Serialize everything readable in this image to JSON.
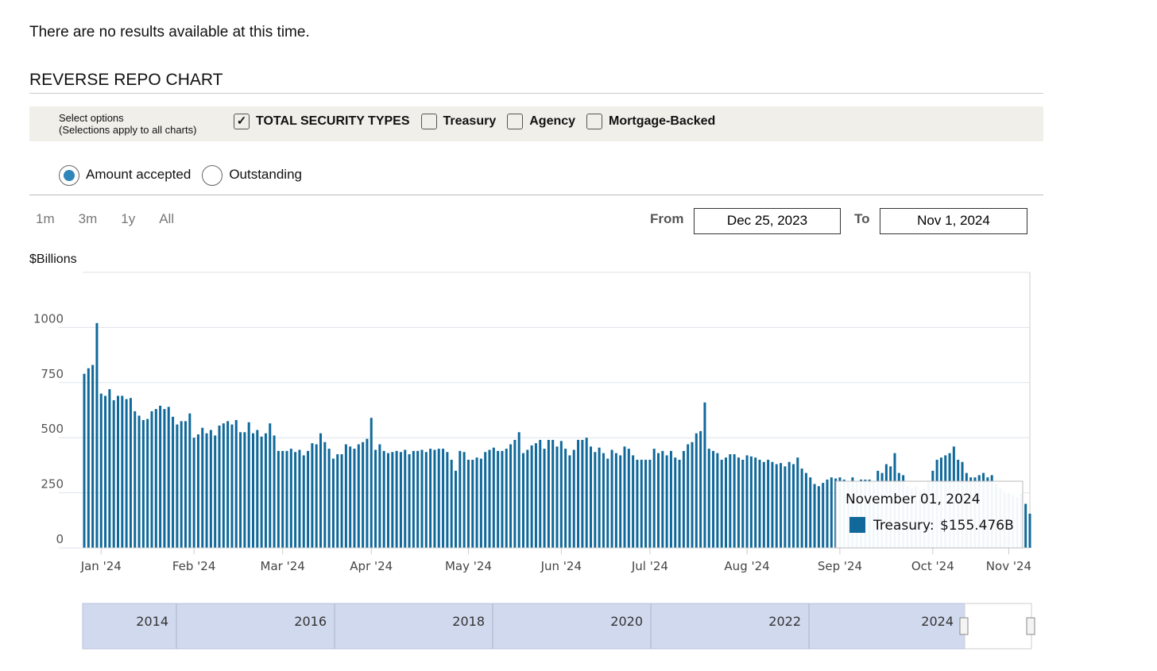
{
  "message": "There are no results available at this time.",
  "section_title": "REVERSE REPO CHART",
  "options": {
    "label_line1": "Select options",
    "label_line2": "(Selections apply to all charts)",
    "checkboxes": [
      {
        "label": "TOTAL SECURITY TYPES",
        "checked": true
      },
      {
        "label": "Treasury",
        "checked": false
      },
      {
        "label": "Agency",
        "checked": false
      },
      {
        "label": "Mortgage-Backed",
        "checked": false
      }
    ],
    "radios": [
      {
        "label": "Amount accepted",
        "selected": true
      },
      {
        "label": "Outstanding",
        "selected": false
      }
    ]
  },
  "range": {
    "buttons": [
      "1m",
      "3m",
      "1y",
      "All"
    ],
    "from_label": "From",
    "from": "Dec 25, 2023",
    "to_label": "To",
    "to": "Nov 1, 2024"
  },
  "chart_data": {
    "type": "bar",
    "y_axis_label": "$Billions",
    "color": "#10699a",
    "ylim": [
      0,
      1250
    ],
    "yticks": [
      0,
      250,
      500,
      750,
      1000
    ],
    "grid": true,
    "categories": [
      null,
      null,
      null,
      null,
      "Jan '24",
      null,
      null,
      null,
      null,
      null,
      null,
      null,
      null,
      null,
      null,
      null,
      null,
      null,
      null,
      null,
      null,
      null,
      null,
      null,
      null,
      null,
      "Feb '24",
      null,
      null,
      null,
      null,
      null,
      null,
      null,
      null,
      null,
      null,
      null,
      null,
      null,
      null,
      null,
      null,
      null,
      null,
      null,
      null,
      "Mar '24",
      null,
      null,
      null,
      null,
      null,
      null,
      null,
      null,
      null,
      null,
      null,
      null,
      null,
      null,
      null,
      null,
      null,
      null,
      null,
      null,
      "Apr '24",
      null,
      null,
      null,
      null,
      null,
      null,
      null,
      null,
      null,
      null,
      null,
      null,
      null,
      null,
      null,
      null,
      null,
      null,
      null,
      null,
      null,
      null,
      "May '24",
      null,
      null,
      null,
      null,
      null,
      null,
      null,
      null,
      null,
      null,
      null,
      null,
      null,
      null,
      null,
      null,
      null,
      null,
      null,
      null,
      null,
      "Jun '24",
      null,
      null,
      null,
      null,
      null,
      null,
      null,
      null,
      null,
      null,
      null,
      null,
      null,
      null,
      null,
      null,
      null,
      null,
      null,
      null,
      "Jul '24",
      null,
      null,
      null,
      null,
      null,
      null,
      null,
      null,
      null,
      null,
      null,
      null,
      null,
      null,
      null,
      null,
      null,
      null,
      null,
      null,
      null,
      null,
      "Aug '24",
      null,
      null,
      null,
      null,
      null,
      null,
      null,
      null,
      null,
      null,
      null,
      null,
      null,
      null,
      null,
      null,
      null,
      null,
      null,
      null,
      null,
      "Sep '24",
      null,
      null,
      null,
      null,
      null,
      null,
      null,
      null,
      null,
      null,
      null,
      null,
      null,
      null,
      null,
      null,
      null,
      null,
      null,
      null,
      null,
      "Oct '24",
      null,
      null,
      null,
      null,
      null,
      null,
      null,
      null,
      null,
      null,
      null,
      null,
      null,
      null,
      null,
      null,
      null,
      "Nov '24",
      null,
      null,
      null,
      null,
      null
    ],
    "values": [
      790,
      815,
      830,
      1020,
      700,
      690,
      720,
      670,
      690,
      690,
      675,
      680,
      620,
      600,
      580,
      585,
      620,
      630,
      645,
      630,
      640,
      595,
      560,
      575,
      575,
      610,
      500,
      515,
      545,
      520,
      535,
      510,
      555,
      565,
      575,
      560,
      580,
      525,
      525,
      570,
      520,
      535,
      505,
      520,
      565,
      510,
      440,
      440,
      440,
      450,
      435,
      445,
      420,
      440,
      475,
      470,
      520,
      480,
      450,
      405,
      425,
      425,
      470,
      460,
      450,
      470,
      480,
      495,
      590,
      445,
      470,
      440,
      430,
      435,
      440,
      435,
      445,
      425,
      440,
      440,
      445,
      435,
      450,
      445,
      450,
      450,
      435,
      400,
      350,
      440,
      435,
      400,
      400,
      410,
      405,
      435,
      445,
      455,
      440,
      440,
      450,
      470,
      490,
      525,
      430,
      445,
      465,
      475,
      490,
      450,
      490,
      490,
      460,
      485,
      450,
      420,
      445,
      490,
      490,
      500,
      460,
      435,
      455,
      430,
      405,
      445,
      430,
      420,
      460,
      450,
      420,
      400,
      400,
      400,
      400,
      450,
      430,
      440,
      420,
      440,
      410,
      400,
      440,
      470,
      480,
      520,
      530,
      660,
      450,
      440,
      430,
      400,
      410,
      425,
      425,
      410,
      400,
      420,
      415,
      410,
      400,
      390,
      400,
      390,
      380,
      385,
      370,
      390,
      380,
      410,
      360,
      340,
      320,
      290,
      280,
      295,
      310,
      320,
      315,
      320,
      310,
      300,
      320,
      300,
      310,
      310,
      310,
      300,
      350,
      340,
      380,
      370,
      430,
      340,
      330,
      280,
      270,
      280,
      260,
      270,
      300,
      350,
      400,
      410,
      420,
      430,
      460,
      400,
      390,
      340,
      320,
      320,
      330,
      340,
      320,
      330,
      290,
      270,
      255,
      250,
      240,
      230,
      245,
      200,
      155.476
    ],
    "tooltip": {
      "date": "November 01, 2024",
      "series": "Treasury:",
      "value_label": "$155.476B"
    }
  },
  "navigator": {
    "labels": [
      "2014",
      "2016",
      "2018",
      "2020",
      "2022",
      "2024"
    ]
  }
}
